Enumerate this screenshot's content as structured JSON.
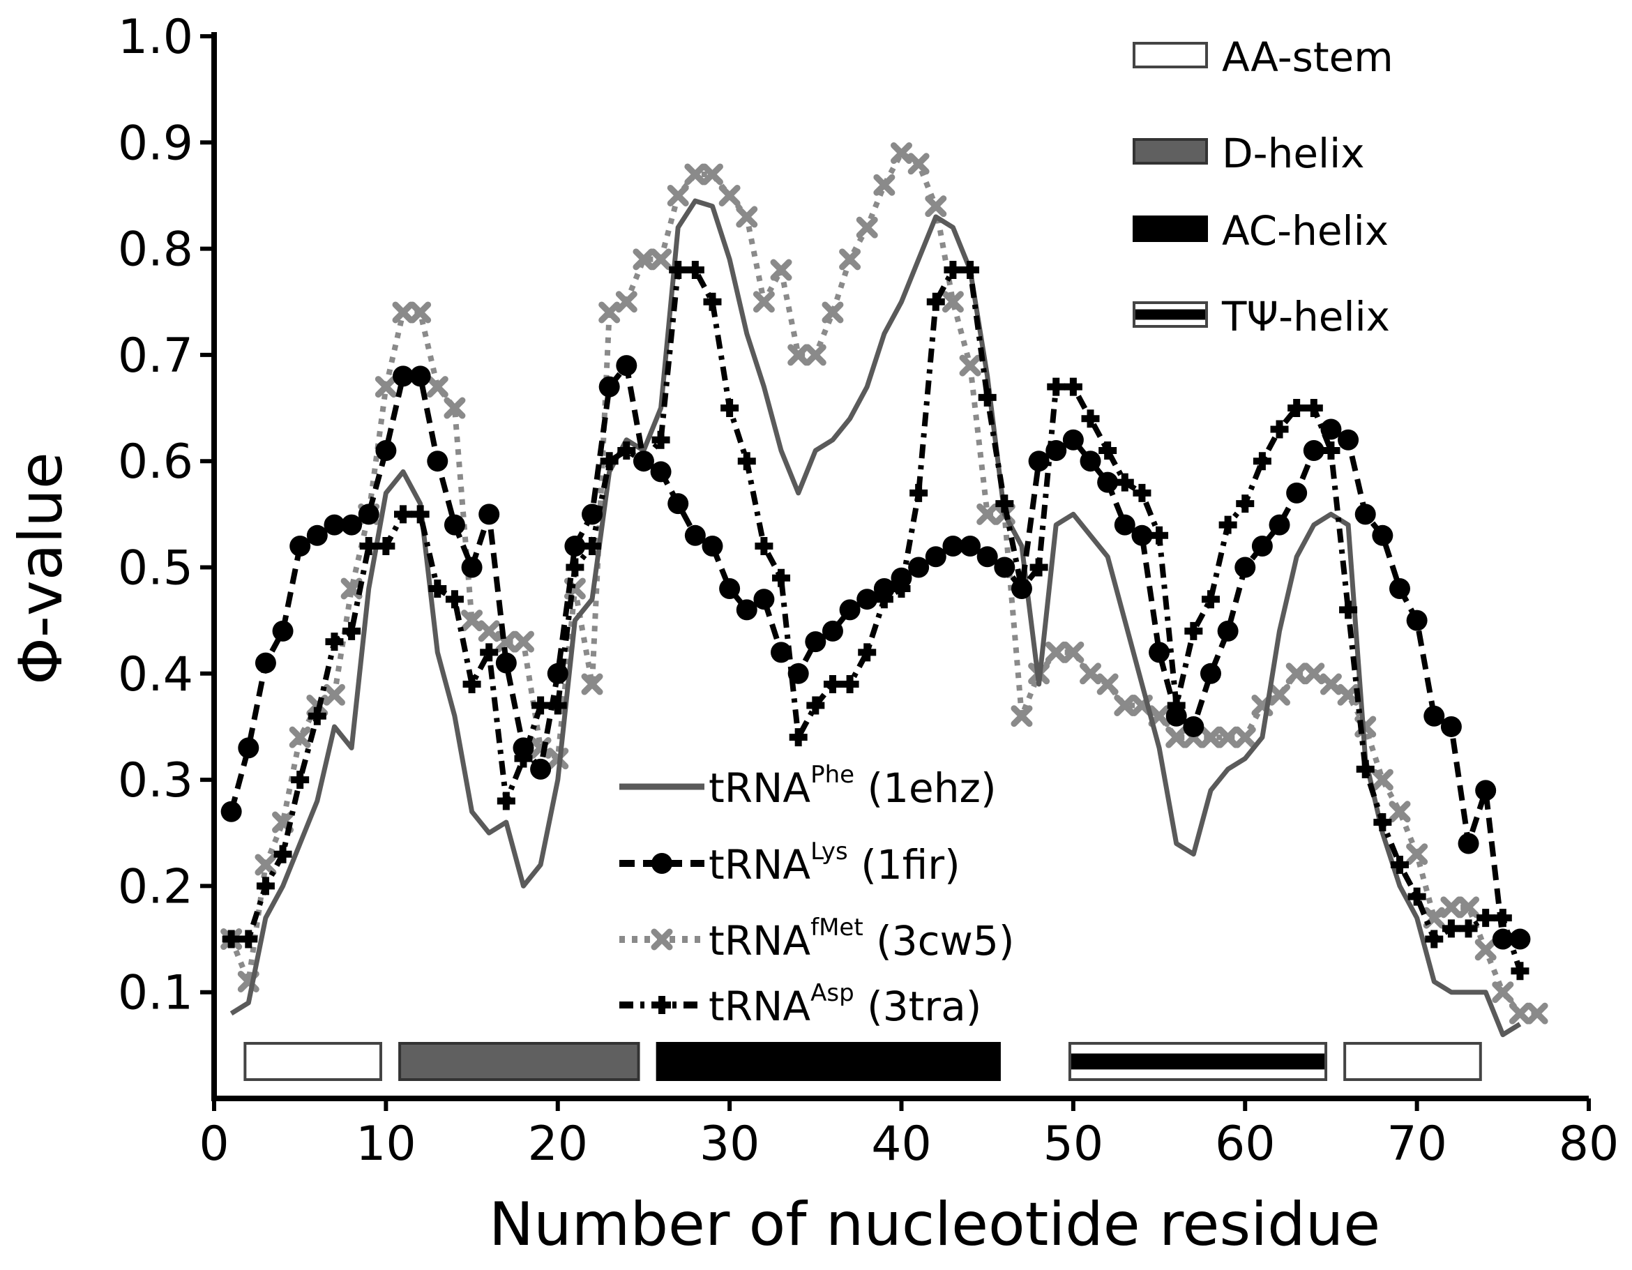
{
  "chart_data": {
    "type": "line",
    "xlabel": "Number of nucleotide residue",
    "ylabel": "Φ-value",
    "xlim": [
      0,
      80
    ],
    "ylim": [
      0,
      1.0
    ],
    "xticks": [
      "0",
      "10",
      "20",
      "30",
      "40",
      "50",
      "60",
      "70",
      "80"
    ],
    "yticks": [
      "0.1",
      "0.2",
      "0.3",
      "0.4",
      "0.5",
      "0.6",
      "0.7",
      "0.8",
      "0.9",
      "1.0"
    ],
    "grid": false,
    "series_legend_position": "bottom-center",
    "region_legend_position": "top-right",
    "series": [
      {
        "name": "tRNA",
        "superscript": "Phe",
        "suffix": "(1ehz)",
        "color": "#5a5a5a",
        "style": "solid",
        "marker": "none",
        "x": [
          1,
          2,
          3,
          4,
          5,
          6,
          7,
          8,
          9,
          10,
          11,
          12,
          13,
          14,
          15,
          16,
          17,
          18,
          19,
          20,
          21,
          22,
          23,
          24,
          25,
          26,
          27,
          28,
          29,
          30,
          31,
          32,
          33,
          34,
          35,
          36,
          37,
          38,
          39,
          40,
          41,
          42,
          43,
          44,
          45,
          46,
          47,
          48,
          49,
          50,
          51,
          52,
          53,
          54,
          55,
          56,
          57,
          58,
          59,
          60,
          61,
          62,
          63,
          64,
          65,
          66,
          67,
          68,
          69,
          70,
          71,
          72,
          73,
          74,
          75,
          76
        ],
        "y": [
          0.08,
          0.09,
          0.17,
          0.2,
          0.24,
          0.28,
          0.35,
          0.33,
          0.48,
          0.57,
          0.59,
          0.56,
          0.42,
          0.36,
          0.27,
          0.25,
          0.26,
          0.2,
          0.22,
          0.3,
          0.45,
          0.47,
          0.59,
          0.62,
          0.61,
          0.65,
          0.82,
          0.845,
          0.84,
          0.79,
          0.72,
          0.67,
          0.61,
          0.57,
          0.61,
          0.62,
          0.64,
          0.67,
          0.72,
          0.75,
          0.79,
          0.83,
          0.82,
          0.78,
          0.68,
          0.55,
          0.52,
          0.39,
          0.54,
          0.55,
          0.53,
          0.51,
          0.45,
          0.39,
          0.33,
          0.24,
          0.23,
          0.29,
          0.31,
          0.32,
          0.34,
          0.44,
          0.51,
          0.54,
          0.55,
          0.54,
          0.32,
          0.25,
          0.2,
          0.17,
          0.11,
          0.1,
          0.1,
          0.1,
          0.06,
          0.07
        ]
      },
      {
        "name": "tRNA",
        "superscript": "Lys",
        "suffix": "(1fir)",
        "color": "#000000",
        "style": "dashed",
        "marker": "circle",
        "x": [
          1,
          2,
          3,
          4,
          5,
          6,
          7,
          8,
          9,
          10,
          11,
          12,
          13,
          14,
          15,
          16,
          17,
          18,
          19,
          20,
          21,
          22,
          23,
          24,
          25,
          26,
          27,
          28,
          29,
          30,
          31,
          32,
          33,
          34,
          35,
          36,
          37,
          38,
          39,
          40,
          41,
          42,
          43,
          44,
          45,
          46,
          47,
          48,
          49,
          50,
          51,
          52,
          53,
          54,
          55,
          56,
          57,
          58,
          59,
          60,
          61,
          62,
          63,
          64,
          65,
          66,
          67,
          68,
          69,
          70,
          71,
          72,
          73,
          74,
          75,
          76
        ],
        "y": [
          0.27,
          0.33,
          0.41,
          0.44,
          0.52,
          0.53,
          0.54,
          0.54,
          0.55,
          0.61,
          0.68,
          0.68,
          0.6,
          0.54,
          0.5,
          0.55,
          0.41,
          0.33,
          0.31,
          0.4,
          0.52,
          0.55,
          0.67,
          0.69,
          0.6,
          0.59,
          0.56,
          0.53,
          0.52,
          0.48,
          0.46,
          0.47,
          0.42,
          0.4,
          0.43,
          0.44,
          0.46,
          0.47,
          0.48,
          0.49,
          0.5,
          0.51,
          0.52,
          0.52,
          0.51,
          0.5,
          0.48,
          0.6,
          0.61,
          0.62,
          0.6,
          0.58,
          0.54,
          0.53,
          0.42,
          0.36,
          0.35,
          0.4,
          0.44,
          0.5,
          0.52,
          0.54,
          0.57,
          0.61,
          0.63,
          0.62,
          0.55,
          0.53,
          0.48,
          0.45,
          0.36,
          0.35,
          0.24,
          0.29,
          0.15,
          0.15
        ]
      },
      {
        "name": "tRNA",
        "superscript": "fMet",
        "suffix": "(3cw5)",
        "color": "#8a8a8a",
        "style": "dotted",
        "marker": "x",
        "x": [
          1,
          2,
          3,
          4,
          5,
          6,
          7,
          8,
          9,
          10,
          11,
          12,
          13,
          14,
          15,
          16,
          17,
          18,
          19,
          20,
          21,
          22,
          23,
          24,
          25,
          26,
          27,
          28,
          29,
          30,
          31,
          32,
          33,
          34,
          35,
          36,
          37,
          38,
          39,
          40,
          41,
          42,
          43,
          44,
          45,
          46,
          47,
          48,
          49,
          50,
          51,
          52,
          53,
          54,
          55,
          56,
          57,
          58,
          59,
          60,
          61,
          62,
          63,
          64,
          65,
          66,
          67,
          68,
          69,
          70,
          71,
          72,
          73,
          74,
          75,
          76,
          77
        ],
        "y": [
          0.15,
          0.11,
          0.22,
          0.26,
          0.34,
          0.37,
          0.38,
          0.48,
          0.55,
          0.67,
          0.74,
          0.74,
          0.67,
          0.65,
          0.45,
          0.44,
          0.43,
          0.43,
          0.33,
          0.32,
          0.48,
          0.39,
          0.74,
          0.75,
          0.79,
          0.79,
          0.85,
          0.87,
          0.87,
          0.85,
          0.83,
          0.75,
          0.78,
          0.7,
          0.7,
          0.74,
          0.79,
          0.82,
          0.86,
          0.89,
          0.88,
          0.84,
          0.75,
          0.69,
          0.55,
          0.55,
          0.36,
          0.4,
          0.42,
          0.42,
          0.4,
          0.39,
          0.37,
          0.37,
          0.36,
          0.34,
          0.34,
          0.34,
          0.34,
          0.34,
          0.37,
          0.38,
          0.4,
          0.4,
          0.39,
          0.38,
          0.35,
          0.3,
          0.27,
          0.23,
          0.17,
          0.18,
          0.18,
          0.14,
          0.1,
          0.08,
          0.08
        ]
      },
      {
        "name": "tRNA",
        "superscript": "Asp",
        "suffix": "(3tra)",
        "color": "#000000",
        "style": "dash-dot",
        "marker": "plus",
        "x": [
          1,
          2,
          3,
          4,
          5,
          6,
          7,
          8,
          9,
          10,
          11,
          12,
          13,
          14,
          15,
          16,
          17,
          18,
          19,
          20,
          21,
          22,
          23,
          24,
          25,
          26,
          27,
          28,
          29,
          30,
          31,
          32,
          33,
          34,
          35,
          36,
          37,
          38,
          39,
          40,
          41,
          42,
          43,
          44,
          45,
          46,
          47,
          48,
          49,
          50,
          51,
          52,
          53,
          54,
          55,
          56,
          57,
          58,
          59,
          60,
          61,
          62,
          63,
          64,
          65,
          66,
          67,
          68,
          69,
          70,
          71,
          72,
          73,
          74,
          75,
          76
        ],
        "y": [
          0.15,
          0.15,
          0.2,
          0.23,
          0.3,
          0.36,
          0.43,
          0.44,
          0.52,
          0.52,
          0.55,
          0.55,
          0.48,
          0.47,
          0.39,
          0.42,
          0.28,
          0.32,
          0.37,
          0.37,
          0.5,
          0.52,
          0.6,
          0.61,
          0.6,
          0.62,
          0.78,
          0.78,
          0.75,
          0.65,
          0.6,
          0.52,
          0.49,
          0.34,
          0.37,
          0.39,
          0.39,
          0.42,
          0.47,
          0.48,
          0.57,
          0.75,
          0.78,
          0.78,
          0.66,
          0.56,
          0.48,
          0.5,
          0.67,
          0.67,
          0.64,
          0.61,
          0.58,
          0.57,
          0.53,
          0.37,
          0.44,
          0.47,
          0.54,
          0.56,
          0.6,
          0.63,
          0.65,
          0.65,
          0.61,
          0.46,
          0.31,
          0.26,
          0.22,
          0.19,
          0.15,
          0.16,
          0.16,
          0.17,
          0.17,
          0.12
        ]
      }
    ],
    "regions": [
      {
        "name": "AA-stem",
        "start": 2,
        "end": 10,
        "style": "white"
      },
      {
        "name": "D-helix",
        "start": 11,
        "end": 25,
        "style": "gray"
      },
      {
        "name": "AC-helix",
        "start": 26,
        "end": 46,
        "style": "black"
      },
      {
        "name": "TΨ-helix",
        "start": 50,
        "end": 65,
        "style": "stripe"
      },
      {
        "name": "AA-stem",
        "start": 66,
        "end": 74,
        "style": "white"
      }
    ],
    "region_legend": [
      {
        "label": "AA-stem",
        "style": "white"
      },
      {
        "label": "D-helix",
        "style": "gray"
      },
      {
        "label": "AC-helix",
        "style": "black"
      },
      {
        "label": "TΨ-helix",
        "style": "stripe"
      }
    ],
    "colors": {
      "axis": "#000000",
      "gray_region": "#606060",
      "black_region": "#000000",
      "white_region": "#ffffff"
    }
  }
}
